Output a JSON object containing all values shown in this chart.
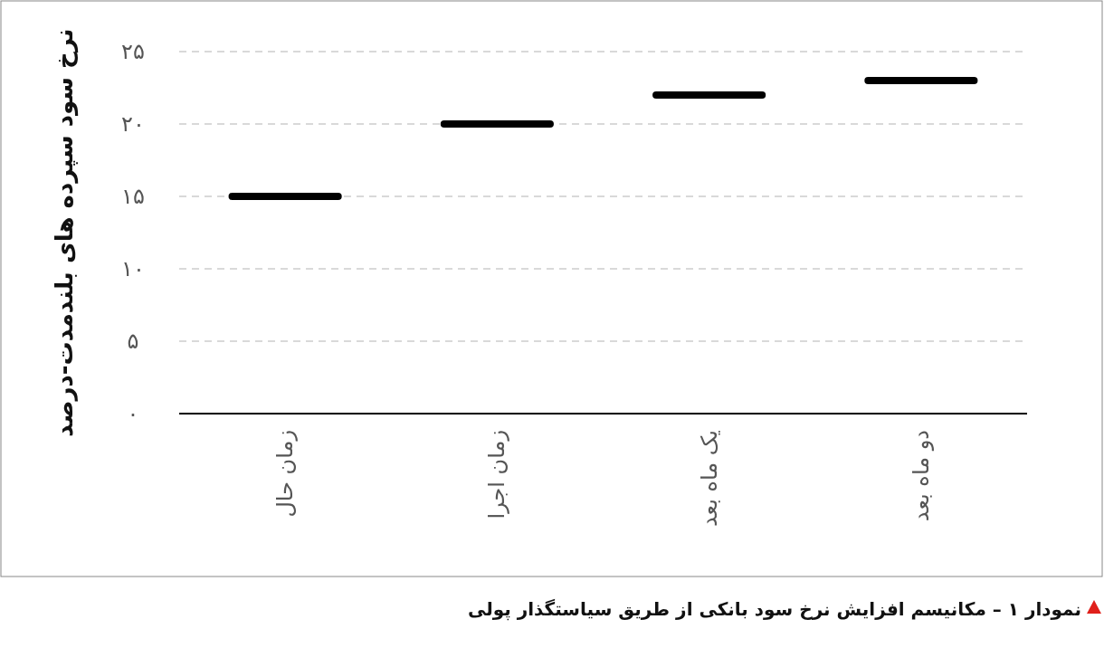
{
  "chart_data": {
    "type": "box",
    "title": "نمودار ۱ – مکانیسم افزایش نرخ سود بانکی از طریق سیاستگذار پولی",
    "ylabel": "نرخ سود سپرده های بلندمدت-درصد",
    "categories": [
      "زمان حال",
      "زمان اجرا",
      "یک ماه بعد",
      "دو ماه بعد"
    ],
    "series": [
      {
        "color": "#000000",
        "boxes": [
          {
            "low": 15,
            "q1": 15,
            "median": 15,
            "q3": 15,
            "high": 15
          },
          {
            "low": 20,
            "q1": 20,
            "median": 20,
            "q3": 20,
            "high": 20
          },
          {
            "low": 22,
            "q1": 22,
            "median": 22,
            "q3": 22,
            "high": 22
          },
          {
            "low": 23,
            "q1": 23,
            "median": 23,
            "q3": 23,
            "high": 23
          }
        ]
      }
    ],
    "ylim": [
      0,
      25
    ],
    "yticks": [
      {
        "value": 0,
        "label": "۰"
      },
      {
        "value": 5,
        "label": "۵"
      },
      {
        "value": 10,
        "label": "۱۰"
      },
      {
        "value": 15,
        "label": "۱۵"
      },
      {
        "value": 20,
        "label": "۲۰"
      },
      {
        "value": 25,
        "label": "۲۵"
      }
    ],
    "grid": "y"
  }
}
